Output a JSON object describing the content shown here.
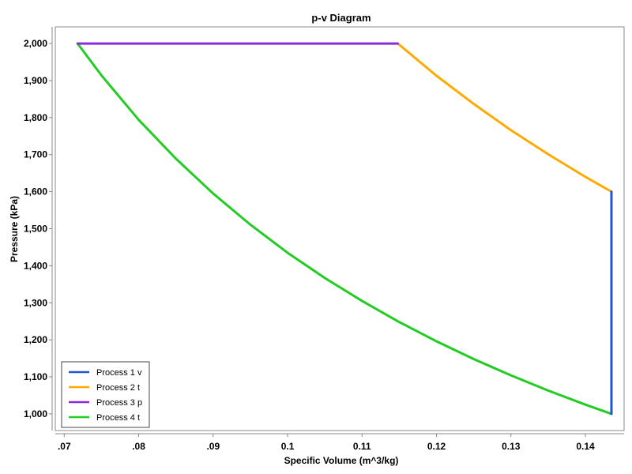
{
  "chart_data": {
    "type": "line",
    "title": "p-v Diagram",
    "xlabel": "Specific Volume (m^3/kg)",
    "ylabel": "Pressure (kPa)",
    "xlim": [
      0.0688,
      0.1452
    ],
    "ylim": [
      955,
      2045
    ],
    "x_ticks": [
      0.07,
      0.08,
      0.09,
      0.1,
      0.11,
      0.12,
      0.13,
      0.14
    ],
    "x_tick_labels": [
      ".07",
      ".08",
      ".09",
      "0.1",
      "0.11",
      "0.12",
      "0.13",
      "0.14"
    ],
    "y_ticks": [
      1000,
      1100,
      1200,
      1300,
      1400,
      1500,
      1600,
      1700,
      1800,
      1900,
      2000
    ],
    "y_tick_labels": [
      "1,000",
      "1,100",
      "1,200",
      "1,300",
      "1,400",
      "1,500",
      "1,600",
      "1,700",
      "1,800",
      "1,900",
      "2,000"
    ],
    "grid": false,
    "legend_position": "bottom-left",
    "series": [
      {
        "name": "Process 1 v",
        "color": "#2255dd",
        "points": [
          [
            0.1435,
            1600
          ],
          [
            0.1435,
            1000
          ]
        ]
      },
      {
        "name": "Process 2 t",
        "color": "#ffaa00",
        "points": [
          [
            0.1148,
            2000
          ],
          [
            0.12,
            1913
          ],
          [
            0.125,
            1837
          ],
          [
            0.13,
            1766
          ],
          [
            0.135,
            1701
          ],
          [
            0.14,
            1640
          ],
          [
            0.1435,
            1600
          ]
        ]
      },
      {
        "name": "Process 3 p",
        "color": "#8a2be2",
        "points": [
          [
            0.0718,
            2000
          ],
          [
            0.1148,
            2000
          ]
        ]
      },
      {
        "name": "Process 4 t",
        "color": "#22cc22",
        "points": [
          [
            0.0718,
            2000
          ],
          [
            0.075,
            1914
          ],
          [
            0.08,
            1794
          ],
          [
            0.085,
            1689
          ],
          [
            0.09,
            1595
          ],
          [
            0.095,
            1511
          ],
          [
            0.1,
            1435
          ],
          [
            0.105,
            1367
          ],
          [
            0.11,
            1305
          ],
          [
            0.115,
            1248
          ],
          [
            0.12,
            1196
          ],
          [
            0.125,
            1148
          ],
          [
            0.13,
            1104
          ],
          [
            0.135,
            1063
          ],
          [
            0.14,
            1025
          ],
          [
            0.1435,
            1000
          ]
        ]
      }
    ]
  }
}
